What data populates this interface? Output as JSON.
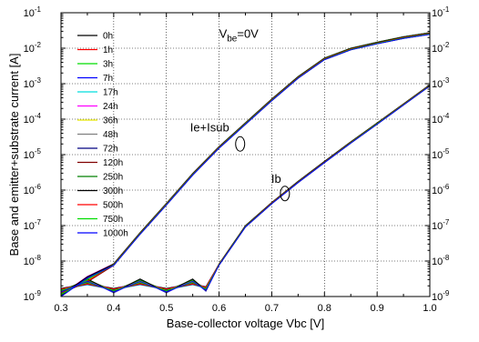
{
  "chart_data": {
    "type": "line",
    "xlabel": "Base-collector voltage Vbc [V]",
    "ylabel": "Base and emitter+substrate current [A]",
    "xlim": [
      0.3,
      1.0
    ],
    "ylim_exp": [
      -9,
      -1
    ],
    "yscale": "log",
    "x_ticks": [
      "0.3",
      "0.4",
      "0.5",
      "0.6",
      "0.7",
      "0.8",
      "0.9",
      "1.0"
    ],
    "y_ticks": [
      {
        "base": "10",
        "exp": "-1"
      },
      {
        "base": "10",
        "exp": "-2"
      },
      {
        "base": "10",
        "exp": "-3"
      },
      {
        "base": "10",
        "exp": "-4"
      },
      {
        "base": "10",
        "exp": "-5"
      },
      {
        "base": "10",
        "exp": "-6"
      },
      {
        "base": "10",
        "exp": "-7"
      },
      {
        "base": "10",
        "exp": "-8"
      },
      {
        "base": "10",
        "exp": "-9"
      }
    ],
    "condition": {
      "main": "V",
      "sub": "be",
      "rest": "=0V"
    },
    "annotations": [
      {
        "text": "Ie+Isub",
        "x": 0.64,
        "y": 2e-05
      },
      {
        "text": "Ib",
        "x": 0.725,
        "y": 8e-07
      }
    ],
    "series": [
      {
        "name": "0h",
        "color": "#000000"
      },
      {
        "name": "1h",
        "color": "#ff0000"
      },
      {
        "name": "3h",
        "color": "#00dd00"
      },
      {
        "name": "7h",
        "color": "#0000ff"
      },
      {
        "name": "17h",
        "color": "#00dddd"
      },
      {
        "name": "24h",
        "color": "#ff00ff"
      },
      {
        "name": "36h",
        "color": "#e8e800"
      },
      {
        "name": "48h",
        "color": "#808080"
      },
      {
        "name": "72h",
        "color": "#000080"
      },
      {
        "name": "120h",
        "color": "#800000"
      },
      {
        "name": "250h",
        "color": "#008000"
      },
      {
        "name": "300h",
        "color": "#000000"
      },
      {
        "name": "500h",
        "color": "#ff0000"
      },
      {
        "name": "750h",
        "color": "#00dd00"
      },
      {
        "name": "1000h",
        "color": "#0000ff"
      }
    ],
    "ie_isub_curve": {
      "x": [
        0.3,
        0.35,
        0.4,
        0.45,
        0.5,
        0.55,
        0.6,
        0.65,
        0.7,
        0.75,
        0.8,
        0.85,
        0.9,
        0.95,
        1.0
      ],
      "y": [
        1.5e-09,
        2e-09,
        8e-09,
        6e-08,
        4e-07,
        2.8e-06,
        1.6e-05,
        7.5e-05,
        0.00035,
        0.0015,
        0.005,
        0.0095,
        0.014,
        0.02,
        0.026
      ]
    },
    "ib_curve": {
      "x": [
        0.3,
        0.35,
        0.4,
        0.45,
        0.5,
        0.55,
        0.575,
        0.6,
        0.65,
        0.7,
        0.75,
        0.8,
        0.85,
        0.9,
        0.95,
        1.0
      ],
      "y": [
        1.8e-09,
        1.8e-09,
        1.8e-09,
        1.8e-09,
        1.8e-09,
        1.8e-09,
        2e-09,
        8e-09,
        9.5e-08,
        4.3e-07,
        1.7e-06,
        6.2e-06,
        2.2e-05,
        7.5e-05,
        0.00026,
        0.0009
      ]
    }
  }
}
